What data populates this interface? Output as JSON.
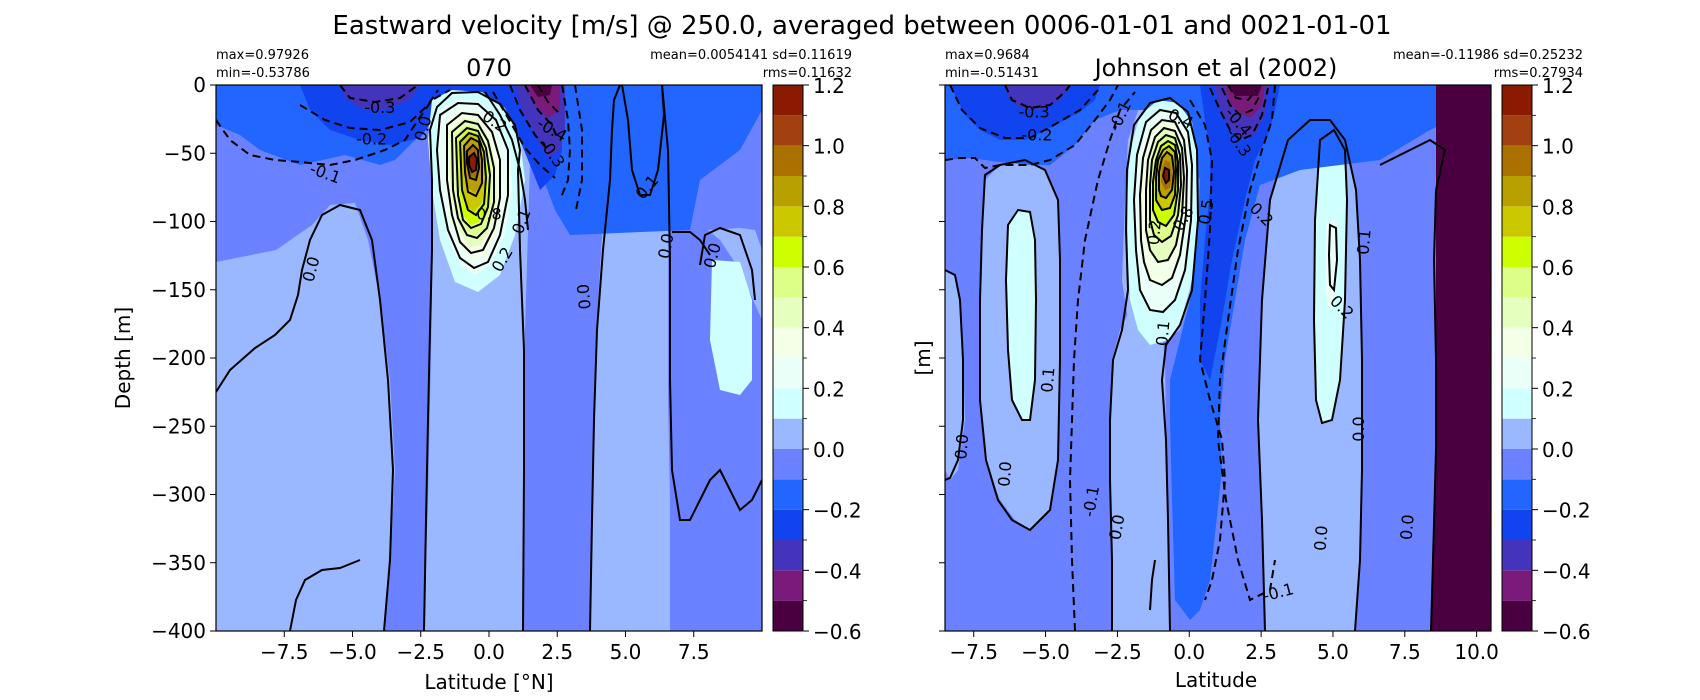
{
  "chart_data": {
    "type": "heatmap",
    "title": "Eastward velocity [m/s] @ 250.0, averaged between 0006-01-01 and 0021-01-01",
    "panels": [
      {
        "title": "070",
        "stats_left": [
          "max=0.97926",
          "min=-0.53786"
        ],
        "stats_right": [
          "mean=0.0054141 sd=0.11619",
          "rms=0.11632"
        ],
        "xlabel": "Latitude [°N]",
        "ylabel": "Depth [m]",
        "xlim": [
          -10,
          10
        ],
        "ylim": [
          -400,
          0
        ],
        "xticks": [
          -7.5,
          -5.0,
          -2.5,
          0.0,
          2.5,
          5.0,
          7.5
        ],
        "xtick_labels": [
          "−7.5",
          "−5.0",
          "−2.5",
          "0.0",
          "2.5",
          "5.0",
          "7.5"
        ],
        "yticks": [
          0,
          -50,
          -100,
          -150,
          -200,
          -250,
          -300,
          -350,
          -400
        ],
        "ytick_labels": [
          "0",
          "−50",
          "−100",
          "−150",
          "−200",
          "−250",
          "−300",
          "−350",
          "−400"
        ],
        "contour_labels": [
          {
            "text": "-0.3",
            "lat": -4.0,
            "depth": -17,
            "rot": 0
          },
          {
            "text": "-0.2",
            "lat": -4.3,
            "depth": -40,
            "rot": 0
          },
          {
            "text": "-0.1",
            "lat": -6.0,
            "depth": -65,
            "rot": 20
          },
          {
            "text": "0.0",
            "lat": -2.4,
            "depth": -32,
            "rot": -75
          },
          {
            "text": "0.2",
            "lat": 0.2,
            "depth": -27,
            "rot": 35
          },
          {
            "text": "-0.4",
            "lat": 2.3,
            "depth": -33,
            "rot": 30
          },
          {
            "text": "-0.3",
            "lat": 2.3,
            "depth": -50,
            "rot": 55
          },
          {
            "text": "0.8",
            "lat": 0.0,
            "depth": -95,
            "rot": 0
          },
          {
            "text": "0.2",
            "lat": 0.5,
            "depth": -128,
            "rot": -60
          },
          {
            "text": "0.1",
            "lat": 1.2,
            "depth": -100,
            "rot": -70
          },
          {
            "text": "0.1",
            "lat": 5.8,
            "depth": -75,
            "rot": -50
          },
          {
            "text": "0.0",
            "lat": -6.5,
            "depth": -135,
            "rot": -75
          },
          {
            "text": "0.0",
            "lat": 3.5,
            "depth": -155,
            "rot": -95
          },
          {
            "text": "0.0",
            "lat": 6.5,
            "depth": -118,
            "rot": -80
          },
          {
            "text": "0.0",
            "lat": 8.2,
            "depth": -125,
            "rot": -75
          }
        ]
      },
      {
        "title": "Johnson et al (2002)",
        "stats_left": [
          "max=0.9684",
          "min=-0.51431"
        ],
        "stats_right": [
          "mean=-0.11986 sd=0.25232",
          "rms=0.27934"
        ],
        "xlabel": "Latitude",
        "ylabel": "[m]",
        "xlim": [
          -8.5,
          10.5
        ],
        "ylim": [
          -400,
          0
        ],
        "xticks": [
          -7.5,
          -5.0,
          -2.5,
          0.0,
          2.5,
          5.0,
          7.5,
          10.0
        ],
        "xtick_labels": [
          "−7.5",
          "−5.0",
          "−2.5",
          "0.0",
          "2.5",
          "5.0",
          "7.5",
          "10.0"
        ],
        "yticks": [
          0,
          -50,
          -100,
          -150,
          -200,
          -250,
          -300,
          -350,
          -400
        ],
        "contour_labels": [
          {
            "text": "-0.3",
            "lat": -5.4,
            "depth": -20,
            "rot": 0
          },
          {
            "text": "-0.2",
            "lat": -5.3,
            "depth": -37,
            "rot": 0
          },
          {
            "text": "-0.1",
            "lat": -2.4,
            "depth": -23,
            "rot": -65
          },
          {
            "text": "0.4",
            "lat": -0.3,
            "depth": -25,
            "rot": 25
          },
          {
            "text": "-0.4",
            "lat": 1.7,
            "depth": -27,
            "rot": 50
          },
          {
            "text": "-0.3",
            "lat": 1.7,
            "depth": -42,
            "rot": 55
          },
          {
            "text": "0.2",
            "lat": 2.5,
            "depth": -95,
            "rot": 45
          },
          {
            "text": "0.2",
            "lat": -1.2,
            "depth": -108,
            "rot": -85
          },
          {
            "text": "0.8",
            "lat": -0.2,
            "depth": -98,
            "rot": -60
          },
          {
            "text": "0.5",
            "lat": 0.6,
            "depth": -93,
            "rot": -80
          },
          {
            "text": "0.1",
            "lat": -0.9,
            "depth": -182,
            "rot": -85
          },
          {
            "text": "0.1",
            "lat": 6.1,
            "depth": -115,
            "rot": -85
          },
          {
            "text": "0.2",
            "lat": 5.3,
            "depth": -163,
            "rot": 45
          },
          {
            "text": "0.1",
            "lat": -4.9,
            "depth": -216,
            "rot": -85
          },
          {
            "text": "0.0",
            "lat": -7.9,
            "depth": -265,
            "rot": -85
          },
          {
            "text": "0.0",
            "lat": -6.4,
            "depth": -285,
            "rot": -85
          },
          {
            "text": "-0.1",
            "lat": -3.4,
            "depth": -305,
            "rot": -80
          },
          {
            "text": "0.0",
            "lat": -2.5,
            "depth": -324,
            "rot": -80
          },
          {
            "text": "0.0",
            "lat": 4.6,
            "depth": -332,
            "rot": -85
          },
          {
            "text": "-0.1",
            "lat": 3.1,
            "depth": -372,
            "rot": -15
          },
          {
            "text": "0.0",
            "lat": 5.9,
            "depth": -252,
            "rot": -90
          },
          {
            "text": "0.0",
            "lat": 7.6,
            "depth": -324,
            "rot": -85
          }
        ]
      }
    ],
    "colorbar": {
      "levels": [
        -0.6,
        -0.5,
        -0.4,
        -0.3,
        -0.2,
        -0.1,
        0.0,
        0.1,
        0.2,
        0.3,
        0.4,
        0.5,
        0.6,
        0.7,
        0.8,
        0.9,
        1.0,
        1.1,
        1.2
      ],
      "colors": [
        "#4a0040",
        "#7a1a7a",
        "#4433bb",
        "#1144ee",
        "#2266ff",
        "#6a82ff",
        "#9ab8ff",
        "#cfffff",
        "#eafff8",
        "#f4ffe8",
        "#e5ffbf",
        "#ddff88",
        "#ccff00",
        "#ccc800",
        "#b8a000",
        "#aa7000",
        "#a24010",
        "#8a1a00",
        "#6a0000"
      ],
      "ticks": [
        1.2,
        1.0,
        0.8,
        0.6,
        0.4,
        0.2,
        0.0,
        -0.2,
        -0.4,
        -0.6
      ],
      "tick_labels": [
        "1.2",
        "1.0",
        "0.8",
        "0.6",
        "0.4",
        "0.2",
        "0.0",
        "−0.2",
        "−0.4",
        "−0.6"
      ]
    }
  }
}
